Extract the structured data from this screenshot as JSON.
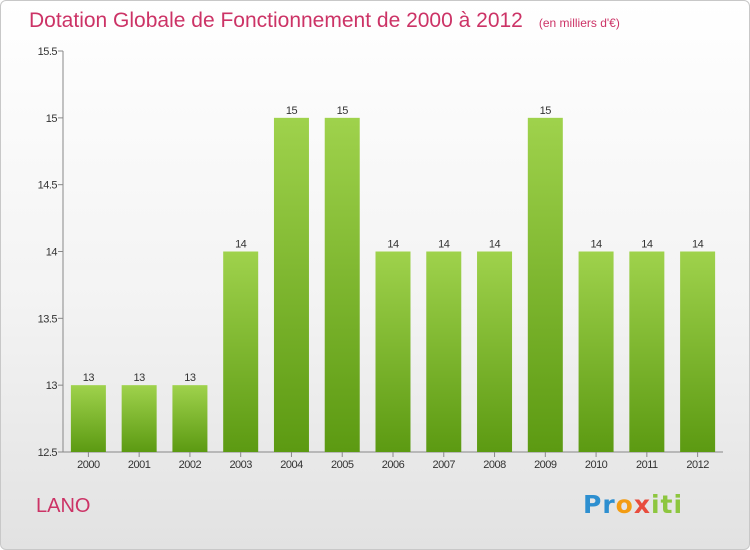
{
  "header": {
    "title": "Dotation Globale de Fonctionnement de 2000 à 2012",
    "unit": "(en milliers d'€)"
  },
  "footer": {
    "city": "LANO",
    "logo": "Proxiti",
    "logo_colors": [
      "#2d8fd0",
      "#f39c12",
      "#e84c3d",
      "#8dc63f"
    ]
  },
  "colors": {
    "title": "#cc3366",
    "bar_light": "#9fd24c",
    "bar_dark": "#5c9a12"
  },
  "chart_data": {
    "type": "bar",
    "title": "Dotation Globale de Fonctionnement de 2000 à 2012",
    "subtitle": "(en milliers d'€)",
    "xlabel": "",
    "ylabel": "",
    "categories": [
      "2000",
      "2001",
      "2002",
      "2003",
      "2004",
      "2005",
      "2006",
      "2007",
      "2008",
      "2009",
      "2010",
      "2011",
      "2012"
    ],
    "values": [
      13,
      13,
      13,
      14,
      15,
      15,
      14,
      14,
      14,
      15,
      14,
      14,
      14
    ],
    "value_labels": [
      "13",
      "13",
      "13",
      "14",
      "15",
      "15",
      "14",
      "14",
      "14",
      "15",
      "14",
      "14",
      "14"
    ],
    "ylim": [
      12.5,
      15.5
    ],
    "yticks": [
      12.5,
      13,
      13.5,
      14,
      14.5,
      15,
      15.5
    ],
    "ytick_labels": [
      "12.5",
      "13",
      "13.5",
      "14",
      "14.5",
      "15",
      "15.5"
    ],
    "grid": false,
    "legend": "none"
  }
}
